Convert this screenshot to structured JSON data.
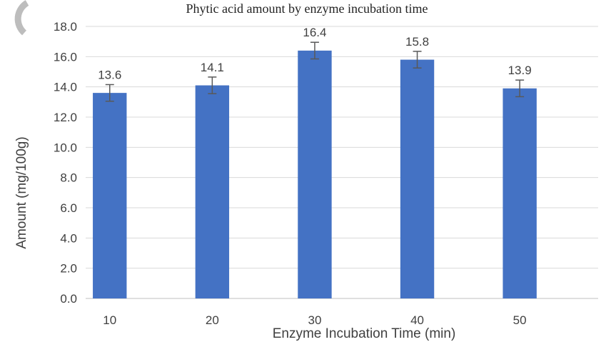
{
  "chart_data": {
    "type": "bar",
    "caption": "Phytic acid amount by enzyme incubation time",
    "categories": [
      "10",
      "20",
      "30",
      "40",
      "50"
    ],
    "values": [
      13.6,
      14.1,
      16.4,
      15.8,
      13.9
    ],
    "data_labels": [
      "13.6",
      "14.1",
      "16.4",
      "15.8",
      "13.9"
    ],
    "error": [
      0.55,
      0.55,
      0.55,
      0.55,
      0.55
    ],
    "xlabel": "Enzyme Incubation Time (min)",
    "ylabel": "Amount (mg/100g)",
    "ylim": [
      0,
      18
    ],
    "yticks": [
      "0.0",
      "2.0",
      "4.0",
      "6.0",
      "8.0",
      "10.0",
      "12.0",
      "14.0",
      "16.0",
      "18.0"
    ],
    "grid": true,
    "legend": "none",
    "bar_color": "#4472C4",
    "error_color": "#595959",
    "grid_color": "#D9D9D9"
  }
}
